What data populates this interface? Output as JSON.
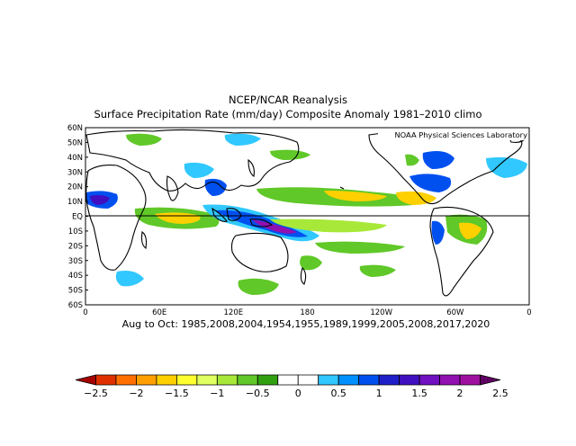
{
  "title": "NCEP/NCAR Reanalysis",
  "subtitle": "Surface Precipitation Rate (mm/day) Composite Anomaly 1981–2010 climo",
  "credit": "NOAA Physical Sciences Laboratory",
  "period_label": "Aug to Oct: 1985,2008,2004,1954,1955,1989,1999,2005,2008,2017,2020",
  "lat_labels": [
    "60N",
    "50N",
    "40N",
    "30N",
    "20N",
    "10N",
    "EQ",
    "10S",
    "20S",
    "30S",
    "40S",
    "50S",
    "60S"
  ],
  "lon_labels": [
    "0",
    "60E",
    "120E",
    "180",
    "120W",
    "60W",
    "0"
  ],
  "colorbar": {
    "tick_labels": [
      "−2.5",
      "−2",
      "−1.5",
      "−1",
      "−0.5",
      "0",
      "0.5",
      "1",
      "1.5",
      "2",
      "2.5"
    ],
    "colors": [
      "#a50000",
      "#e03000",
      "#ff7000",
      "#ffa000",
      "#ffd000",
      "#ffff30",
      "#e0ff60",
      "#a8e838",
      "#60c828",
      "#30a010",
      "#ffffff",
      "#ffffff",
      "#30c8ff",
      "#0090ff",
      "#0050f0",
      "#2020c8",
      "#4010c0",
      "#7010c0",
      "#9010b0",
      "#a010a0",
      "#600060"
    ]
  },
  "palette": {
    "dry_strong": "#ff7000",
    "dry": "#ffd000",
    "dry_weak": "#a8e838",
    "dry_faint": "#60c828",
    "wet_weak": "#30c8ff",
    "wet": "#0050f0",
    "wet_strong": "#4010c0",
    "wet_extreme": "#9010b0"
  }
}
